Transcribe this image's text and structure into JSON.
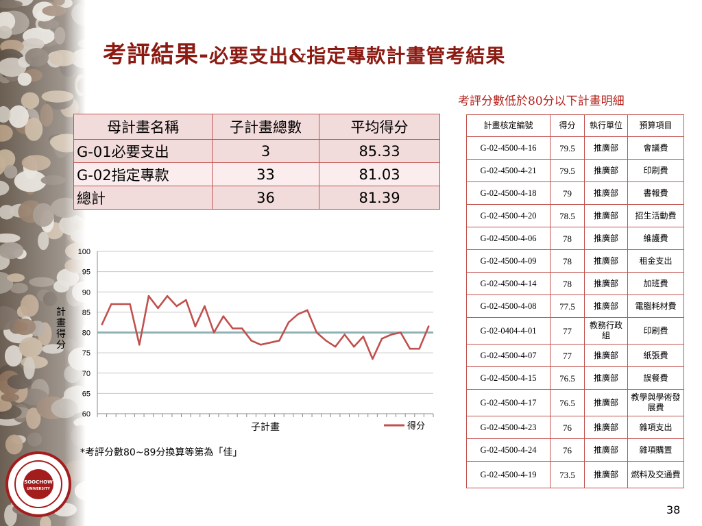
{
  "slide": {
    "title_main": "考評結果-",
    "title_sub": "必要支出&指定專款計畫管考結果",
    "detail_caption": "考評分數低於80分以下計畫明細",
    "note": "*考評分數80~89分換算等第為「佳」",
    "page_number": "38"
  },
  "summary_table": {
    "headers": [
      "母計畫名稱",
      "子計畫總數",
      "平均得分"
    ],
    "rows": [
      [
        "G-01必要支出",
        "3",
        "85.33"
      ],
      [
        "G-02指定專款",
        "33",
        "81.03"
      ],
      [
        "總計",
        "36",
        "81.39"
      ]
    ]
  },
  "detail_table": {
    "headers": [
      "計畫核定編號",
      "得分",
      "執行單位",
      "預算項目"
    ],
    "rows": [
      [
        "G-02-4500-4-16",
        "79.5",
        "推廣部",
        "會議費"
      ],
      [
        "G-02-4500-4-21",
        "79.5",
        "推廣部",
        "印刷費"
      ],
      [
        "G-02-4500-4-18",
        "79",
        "推廣部",
        "書報費"
      ],
      [
        "G-02-4500-4-20",
        "78.5",
        "推廣部",
        "招生活動費"
      ],
      [
        "G-02-4500-4-06",
        "78",
        "推廣部",
        "維護費"
      ],
      [
        "G-02-4500-4-09",
        "78",
        "推廣部",
        "租金支出"
      ],
      [
        "G-02-4500-4-14",
        "78",
        "推廣部",
        "加班費"
      ],
      [
        "G-02-4500-4-08",
        "77.5",
        "推廣部",
        "電腦耗材費"
      ],
      [
        "G-02-0404-4-01",
        "77",
        "教務行政組",
        "印刷費"
      ],
      [
        "G-02-4500-4-07",
        "77",
        "推廣部",
        "紙張費"
      ],
      [
        "G-02-4500-4-15",
        "76.5",
        "推廣部",
        "誤餐費"
      ],
      [
        "G-02-4500-4-17",
        "76.5",
        "推廣部",
        "教學與學術發展費"
      ],
      [
        "G-02-4500-4-23",
        "76",
        "推廣部",
        "雜項支出"
      ],
      [
        "G-02-4500-4-24",
        "76",
        "推廣部",
        "雜項購置"
      ],
      [
        "G-02-4500-4-19",
        "73.5",
        "推廣部",
        "燃料及交通費"
      ]
    ]
  },
  "seal_text": "SOOCHOW UNIVERSITY",
  "chart_data": {
    "type": "line",
    "x": [
      1,
      2,
      3,
      4,
      5,
      6,
      7,
      8,
      9,
      10,
      11,
      12,
      13,
      14,
      15,
      16,
      17,
      18,
      19,
      20,
      21,
      22,
      23,
      24,
      25,
      26,
      27,
      28,
      29,
      30,
      31,
      32,
      33,
      34,
      35,
      36
    ],
    "series": [
      {
        "name": "得分",
        "color": "#c0504d",
        "values": [
          82,
          87,
          87,
          87,
          77,
          89,
          86,
          89,
          86.5,
          88,
          81.5,
          86.5,
          80,
          84,
          81,
          81,
          78,
          77,
          77.5,
          78,
          82.5,
          84.5,
          85.5,
          80,
          78,
          76.5,
          79.5,
          76.5,
          79,
          73.5,
          78.5,
          79.5,
          80,
          76,
          76,
          81.5
        ]
      }
    ],
    "reference_line": {
      "value": 80,
      "color": "#8fb1b5"
    },
    "xlabel": "子計畫",
    "ylabel": "計畫得分",
    "ylim": [
      60,
      100
    ],
    "yticks": [
      60,
      65,
      70,
      75,
      80,
      85,
      90,
      95,
      100
    ],
    "grid": true,
    "legend": "bottom-right"
  }
}
